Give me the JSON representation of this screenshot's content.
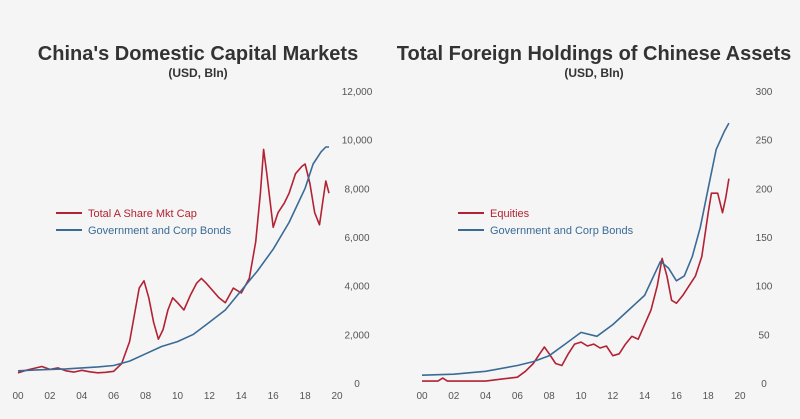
{
  "colors": {
    "red": "#b22234",
    "blue": "#3a6b96",
    "background": "#f5f5f5",
    "text": "#333333"
  },
  "chart_data": [
    {
      "type": "line",
      "title": "China's Domestic Capital Markets",
      "subtitle": "(USD, Bln)",
      "x_tick_labels": [
        "00",
        "02",
        "04",
        "06",
        "08",
        "10",
        "12",
        "14",
        "16",
        "18",
        "20"
      ],
      "y_tick_labels": [
        "0",
        "2,000",
        "4,000",
        "6,000",
        "8,000",
        "10,000",
        "12,000"
      ],
      "xlim": [
        0,
        20
      ],
      "ylim": [
        0,
        12000
      ],
      "y_axis_position": "right",
      "grid": false,
      "legend_position": "middle-left",
      "series": [
        {
          "name": "Total A Share Mkt Cap",
          "color": "#b22234",
          "points": [
            [
              0,
              420
            ],
            [
              0.5,
              520
            ],
            [
              1,
              600
            ],
            [
              1.5,
              680
            ],
            [
              2,
              560
            ],
            [
              2.5,
              620
            ],
            [
              3,
              500
            ],
            [
              3.5,
              450
            ],
            [
              4,
              520
            ],
            [
              4.5,
              460
            ],
            [
              5,
              420
            ],
            [
              5.5,
              440
            ],
            [
              6,
              480
            ],
            [
              6.5,
              800
            ],
            [
              7,
              1700
            ],
            [
              7.3,
              2800
            ],
            [
              7.6,
              3900
            ],
            [
              7.9,
              4200
            ],
            [
              8.2,
              3500
            ],
            [
              8.5,
              2500
            ],
            [
              8.8,
              1800
            ],
            [
              9.1,
              2200
            ],
            [
              9.4,
              3000
            ],
            [
              9.7,
              3500
            ],
            [
              10,
              3300
            ],
            [
              10.4,
              3000
            ],
            [
              10.8,
              3600
            ],
            [
              11.2,
              4100
            ],
            [
              11.5,
              4300
            ],
            [
              11.8,
              4100
            ],
            [
              12.2,
              3800
            ],
            [
              12.6,
              3500
            ],
            [
              13,
              3300
            ],
            [
              13.5,
              3900
            ],
            [
              14,
              3700
            ],
            [
              14.5,
              4300
            ],
            [
              14.9,
              5800
            ],
            [
              15.2,
              7800
            ],
            [
              15.4,
              9600
            ],
            [
              15.6,
              8600
            ],
            [
              15.8,
              7500
            ],
            [
              16,
              6400
            ],
            [
              16.3,
              7000
            ],
            [
              16.7,
              7400
            ],
            [
              17,
              7800
            ],
            [
              17.4,
              8600
            ],
            [
              17.8,
              8900
            ],
            [
              18,
              9000
            ],
            [
              18.3,
              8200
            ],
            [
              18.6,
              7000
            ],
            [
              18.9,
              6500
            ],
            [
              19.1,
              7400
            ],
            [
              19.3,
              8300
            ],
            [
              19.5,
              7800
            ]
          ]
        },
        {
          "name": "Government and Corp Bonds",
          "color": "#3a6b96",
          "points": [
            [
              0,
              500
            ],
            [
              1,
              530
            ],
            [
              2,
              560
            ],
            [
              3,
              580
            ],
            [
              4,
              620
            ],
            [
              5,
              660
            ],
            [
              6,
              720
            ],
            [
              7,
              900
            ],
            [
              8,
              1200
            ],
            [
              9,
              1500
            ],
            [
              10,
              1700
            ],
            [
              11,
              2000
            ],
            [
              12,
              2500
            ],
            [
              13,
              3000
            ],
            [
              14,
              3800
            ],
            [
              15,
              4600
            ],
            [
              16,
              5500
            ],
            [
              17,
              6600
            ],
            [
              18,
              8000
            ],
            [
              18.5,
              9000
            ],
            [
              19,
              9500
            ],
            [
              19.3,
              9700
            ],
            [
              19.5,
              9700
            ]
          ]
        }
      ]
    },
    {
      "type": "line",
      "title": "Total Foreign Holdings of Chinese Assets",
      "subtitle": "(USD, Bln)",
      "x_tick_labels": [
        "00",
        "02",
        "04",
        "06",
        "08",
        "10",
        "12",
        "14",
        "16",
        "18",
        "20"
      ],
      "y_tick_labels": [
        "0",
        "50",
        "100",
        "150",
        "200",
        "250",
        "300"
      ],
      "xlim": [
        0,
        20
      ],
      "ylim": [
        0,
        300
      ],
      "y_axis_position": "right",
      "grid": false,
      "legend_position": "middle-left",
      "series": [
        {
          "name": "Equities",
          "color": "#b22234",
          "points": [
            [
              0,
              2
            ],
            [
              1,
              2
            ],
            [
              1.3,
              5
            ],
            [
              1.6,
              2
            ],
            [
              2,
              2
            ],
            [
              3,
              2
            ],
            [
              4,
              2
            ],
            [
              5,
              4
            ],
            [
              6,
              6
            ],
            [
              6.5,
              12
            ],
            [
              7,
              20
            ],
            [
              7.4,
              30
            ],
            [
              7.7,
              37
            ],
            [
              8,
              30
            ],
            [
              8.4,
              20
            ],
            [
              8.8,
              18
            ],
            [
              9.2,
              30
            ],
            [
              9.6,
              40
            ],
            [
              10,
              42
            ],
            [
              10.4,
              38
            ],
            [
              10.8,
              40
            ],
            [
              11.2,
              36
            ],
            [
              11.6,
              38
            ],
            [
              12,
              28
            ],
            [
              12.4,
              30
            ],
            [
              12.8,
              40
            ],
            [
              13.2,
              48
            ],
            [
              13.6,
              45
            ],
            [
              14,
              60
            ],
            [
              14.4,
              75
            ],
            [
              14.8,
              100
            ],
            [
              15.1,
              128
            ],
            [
              15.4,
              110
            ],
            [
              15.7,
              85
            ],
            [
              16,
              82
            ],
            [
              16.4,
              90
            ],
            [
              16.8,
              100
            ],
            [
              17.2,
              110
            ],
            [
              17.6,
              130
            ],
            [
              18,
              175
            ],
            [
              18.2,
              195
            ],
            [
              18.6,
              195
            ],
            [
              18.9,
              175
            ],
            [
              19.1,
              190
            ],
            [
              19.3,
              210
            ]
          ]
        },
        {
          "name": "Government and Corp Bonds",
          "color": "#3a6b96",
          "points": [
            [
              0,
              8
            ],
            [
              2,
              9
            ],
            [
              4,
              12
            ],
            [
              6,
              18
            ],
            [
              7,
              22
            ],
            [
              8,
              28
            ],
            [
              9,
              40
            ],
            [
              10,
              52
            ],
            [
              11,
              48
            ],
            [
              12,
              60
            ],
            [
              13,
              75
            ],
            [
              14,
              90
            ],
            [
              15,
              125
            ],
            [
              15.5,
              118
            ],
            [
              16,
              105
            ],
            [
              16.5,
              110
            ],
            [
              17,
              130
            ],
            [
              17.5,
              160
            ],
            [
              18,
              200
            ],
            [
              18.5,
              240
            ],
            [
              19,
              258
            ],
            [
              19.3,
              267
            ]
          ]
        }
      ]
    }
  ]
}
